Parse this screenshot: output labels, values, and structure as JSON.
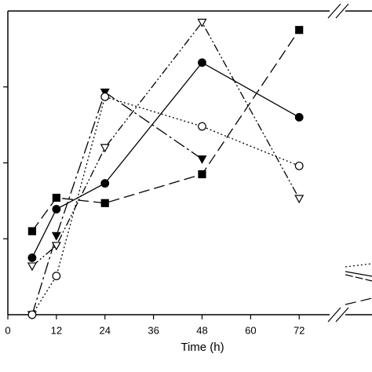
{
  "chart_data": {
    "type": "line",
    "x_label": "Time (h)",
    "x": [
      6,
      12,
      24,
      48,
      72
    ],
    "xlim": [
      0,
      90
    ],
    "xticks": [
      0,
      12,
      24,
      36,
      48,
      60,
      72
    ],
    "ylim": [
      0,
      4
    ],
    "yticks": [
      1,
      2,
      3
    ],
    "series": [
      {
        "marker": "square",
        "filled": true,
        "dash": "14 6",
        "color": "#000",
        "values": [
          1.1,
          1.54,
          1.47,
          1.85,
          3.75
        ]
      },
      {
        "marker": "circle",
        "filled": true,
        "dash": "",
        "color": "#000",
        "values": [
          0.75,
          1.39,
          1.73,
          3.32,
          2.6
        ]
      },
      {
        "marker": "triangle",
        "filled": true,
        "dash": "16 4 3 4",
        "color": "#000",
        "values": [
          0.0,
          1.04,
          2.93,
          2.05,
          null
        ]
      },
      {
        "marker": "circle",
        "filled": false,
        "dash": "2 3",
        "color": "#000",
        "values": [
          0.0,
          0.51,
          2.87,
          2.48,
          1.96
        ]
      },
      {
        "marker": "triangle",
        "filled": false,
        "dash": "10 3 2 3 2 3",
        "color": "#000",
        "values": [
          0.64,
          0.91,
          2.2,
          3.85,
          1.53
        ]
      }
    ]
  }
}
